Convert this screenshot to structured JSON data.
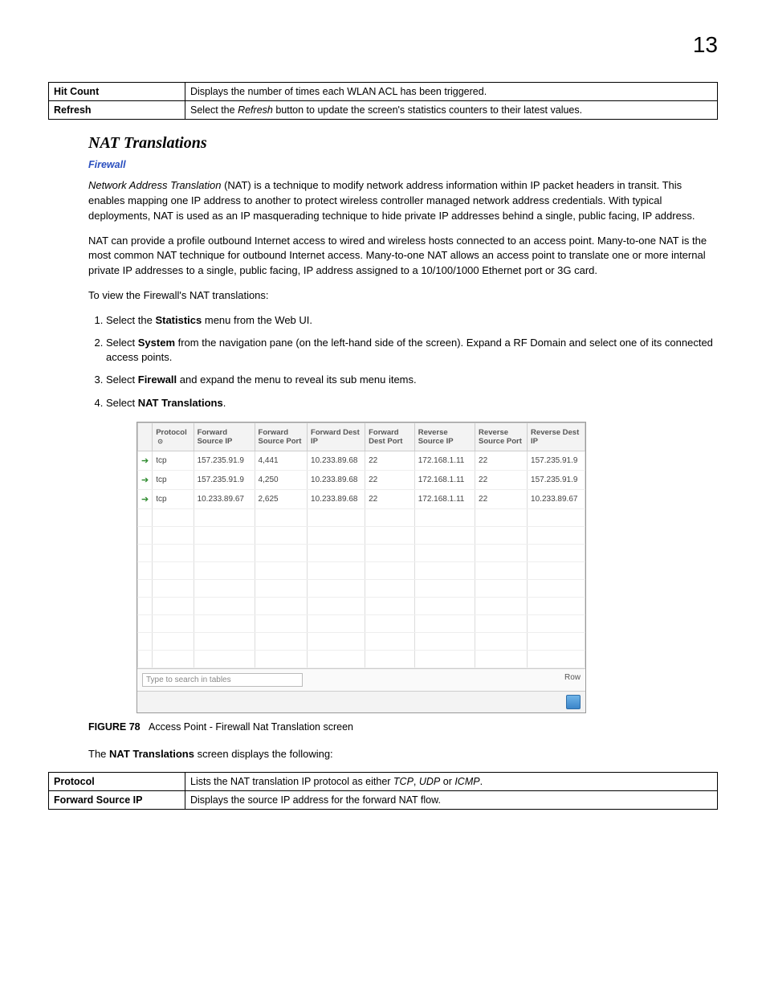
{
  "page_number": "13",
  "top_table": {
    "rows": [
      {
        "term": "Hit Count",
        "desc_plain": "Displays the number of times each WLAN ACL has been triggered."
      },
      {
        "term": "Refresh",
        "desc_prefix": "Select the ",
        "desc_em": "Refresh",
        "desc_suffix": " button to update the screen's statistics counters to their latest values."
      }
    ]
  },
  "section_title": "NAT Translations",
  "subhead": "Firewall",
  "para1_em": "Network Address Translation",
  "para1_rest": " (NAT) is a technique to modify network address information within IP packet headers in transit. This enables mapping one IP address to another to protect wireless controller managed network address credentials. With typical deployments, NAT is used as an IP masquerading technique to hide private IP addresses behind a single, public facing, IP address.",
  "para2": "NAT can provide a profile outbound Internet access to wired and wireless hosts connected to an access point. Many-to-one NAT is the most common NAT technique for outbound Internet access. Many-to-one NAT allows an access point to translate one or more internal private IP addresses to a single, public facing, IP address assigned to a 10/100/1000 Ethernet port or 3G card.",
  "para3": "To view the Firewall's NAT translations:",
  "steps": [
    {
      "pre": "Select the ",
      "b": "Statistics",
      "post": " menu from the Web UI."
    },
    {
      "pre": "Select ",
      "b": "System",
      "post": " from the navigation pane (on the left-hand side of the screen). Expand a RF Domain and select one of its connected access points."
    },
    {
      "pre": "Select ",
      "b": "Firewall",
      "post": " and expand the menu to reveal its sub menu items."
    },
    {
      "pre": "Select ",
      "b": "NAT Translations",
      "post": "."
    }
  ],
  "screenshot": {
    "headers": [
      "",
      "Protocol",
      "Forward Source IP",
      "Forward Source Port",
      "Forward Dest IP",
      "Forward Dest Port",
      "Reverse Source IP",
      "Reverse Source Port",
      "Reverse Dest IP"
    ],
    "sort_col_index": 1,
    "rows": [
      [
        "tcp",
        "157.235.91.9",
        "4,441",
        "10.233.89.68",
        "22",
        "172.168.1.11",
        "22",
        "157.235.91.9"
      ],
      [
        "tcp",
        "157.235.91.9",
        "4,250",
        "10.233.89.68",
        "22",
        "172.168.1.11",
        "22",
        "157.235.91.9"
      ],
      [
        "tcp",
        "10.233.89.67",
        "2,625",
        "10.233.89.68",
        "22",
        "172.168.1.11",
        "22",
        "10.233.89.67"
      ]
    ],
    "empty_rows": 9,
    "search_placeholder": "Type to search in tables",
    "row_label": "Row",
    "colors": {
      "header_bg": "#f3f3f3",
      "border": "#ccc",
      "row_border": "#eee",
      "arrow": "#2e8b2e",
      "btn_top": "#6fb4e8",
      "btn_bottom": "#3b85c9"
    }
  },
  "figure_label": "FIGURE 78",
  "figure_caption": "Access Point - Firewall Nat Translation screen",
  "closing_pre": "The ",
  "closing_b": "NAT Translations",
  "closing_post": " screen displays the following:",
  "bottom_table": {
    "rows": [
      {
        "term": "Protocol",
        "desc_pre": "Lists the NAT translation IP protocol as either ",
        "em1": "TCP",
        "mid1": ", ",
        "em2": "UDP",
        "mid2": " or ",
        "em3": "ICMP",
        "suffix": "."
      },
      {
        "term": "Forward Source IP",
        "desc_plain": "Displays the source IP address for the forward NAT flow."
      }
    ]
  }
}
